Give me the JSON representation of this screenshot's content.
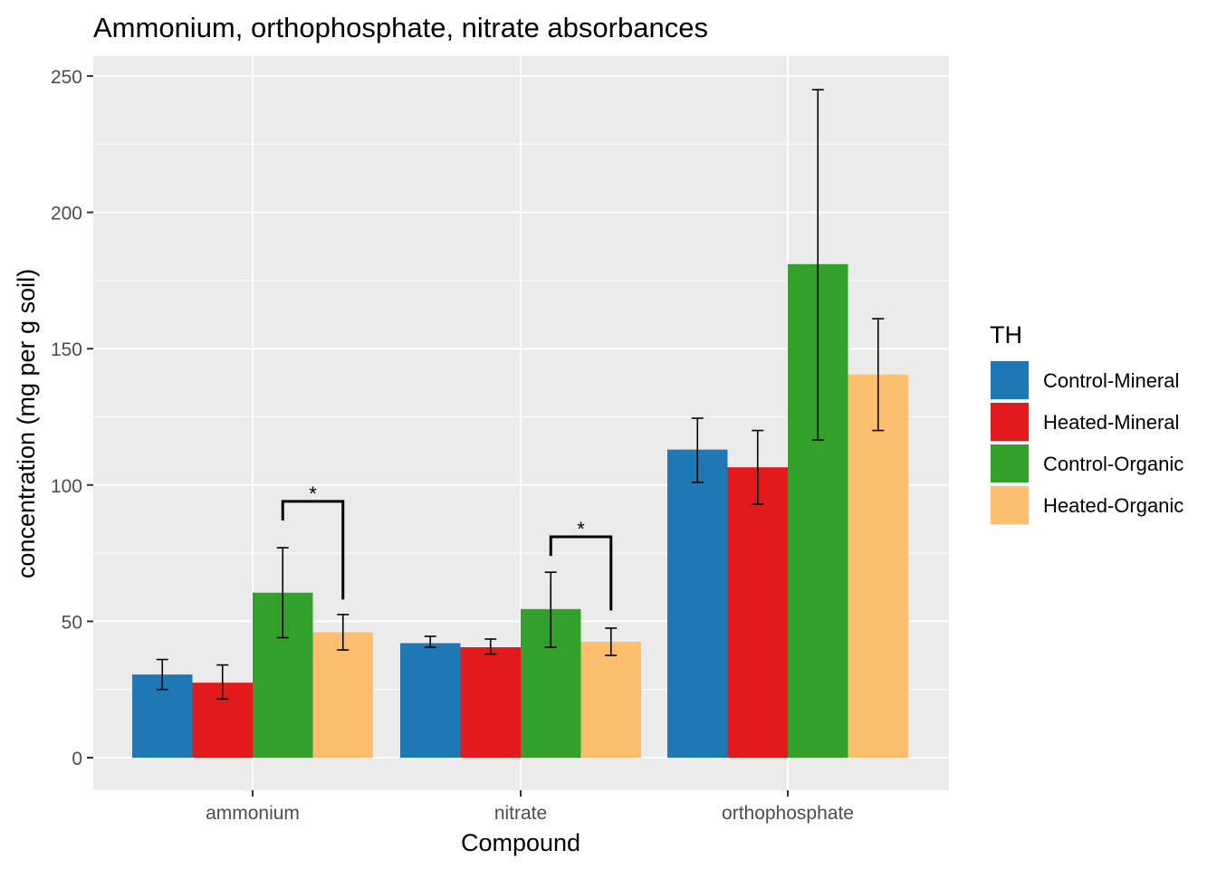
{
  "chart_data": {
    "type": "bar",
    "title": "Ammonium, orthophosphate, nitrate absorbances",
    "xlabel": "Compound",
    "ylabel": "concentration (mg per g soil)",
    "ylim": [
      -12,
      257
    ],
    "yticks": [
      0,
      50,
      100,
      150,
      200,
      250
    ],
    "grid": true,
    "categories": [
      "ammonium",
      "nitrate",
      "orthophosphate"
    ],
    "legend": {
      "title": "TH",
      "position": "right"
    },
    "series": [
      {
        "name": "Control-Mineral",
        "color": "#1f78b4",
        "values": [
          30.5,
          42,
          113
        ],
        "err_low": [
          25,
          40.5,
          101
        ],
        "err_high": [
          36,
          44.5,
          124.5
        ]
      },
      {
        "name": "Heated-Mineral",
        "color": "#e31a1c",
        "values": [
          27.5,
          40.5,
          106.5
        ],
        "err_low": [
          21.5,
          38,
          93
        ],
        "err_high": [
          34,
          43.5,
          120
        ]
      },
      {
        "name": "Control-Organic",
        "color": "#33a02c",
        "values": [
          60.5,
          54.5,
          181
        ],
        "err_low": [
          44,
          40.5,
          116.5
        ],
        "err_high": [
          77,
          68,
          245
        ]
      },
      {
        "name": "Heated-Organic",
        "color": "#fdbf6f",
        "values": [
          46,
          42.5,
          140.5
        ],
        "err_low": [
          39.5,
          37.5,
          120
        ],
        "err_high": [
          52.5,
          47.5,
          161
        ]
      }
    ],
    "annotations": [
      {
        "label": "*",
        "category": "ammonium",
        "from_series": "Control-Organic",
        "to_series": "Heated-Organic",
        "bracket_y": 94,
        "left_end_y": 87,
        "right_end_y": 58
      },
      {
        "label": "*",
        "category": "nitrate",
        "from_series": "Control-Organic",
        "to_series": "Heated-Organic",
        "bracket_y": 81,
        "left_end_y": 74,
        "right_end_y": 54
      }
    ]
  }
}
